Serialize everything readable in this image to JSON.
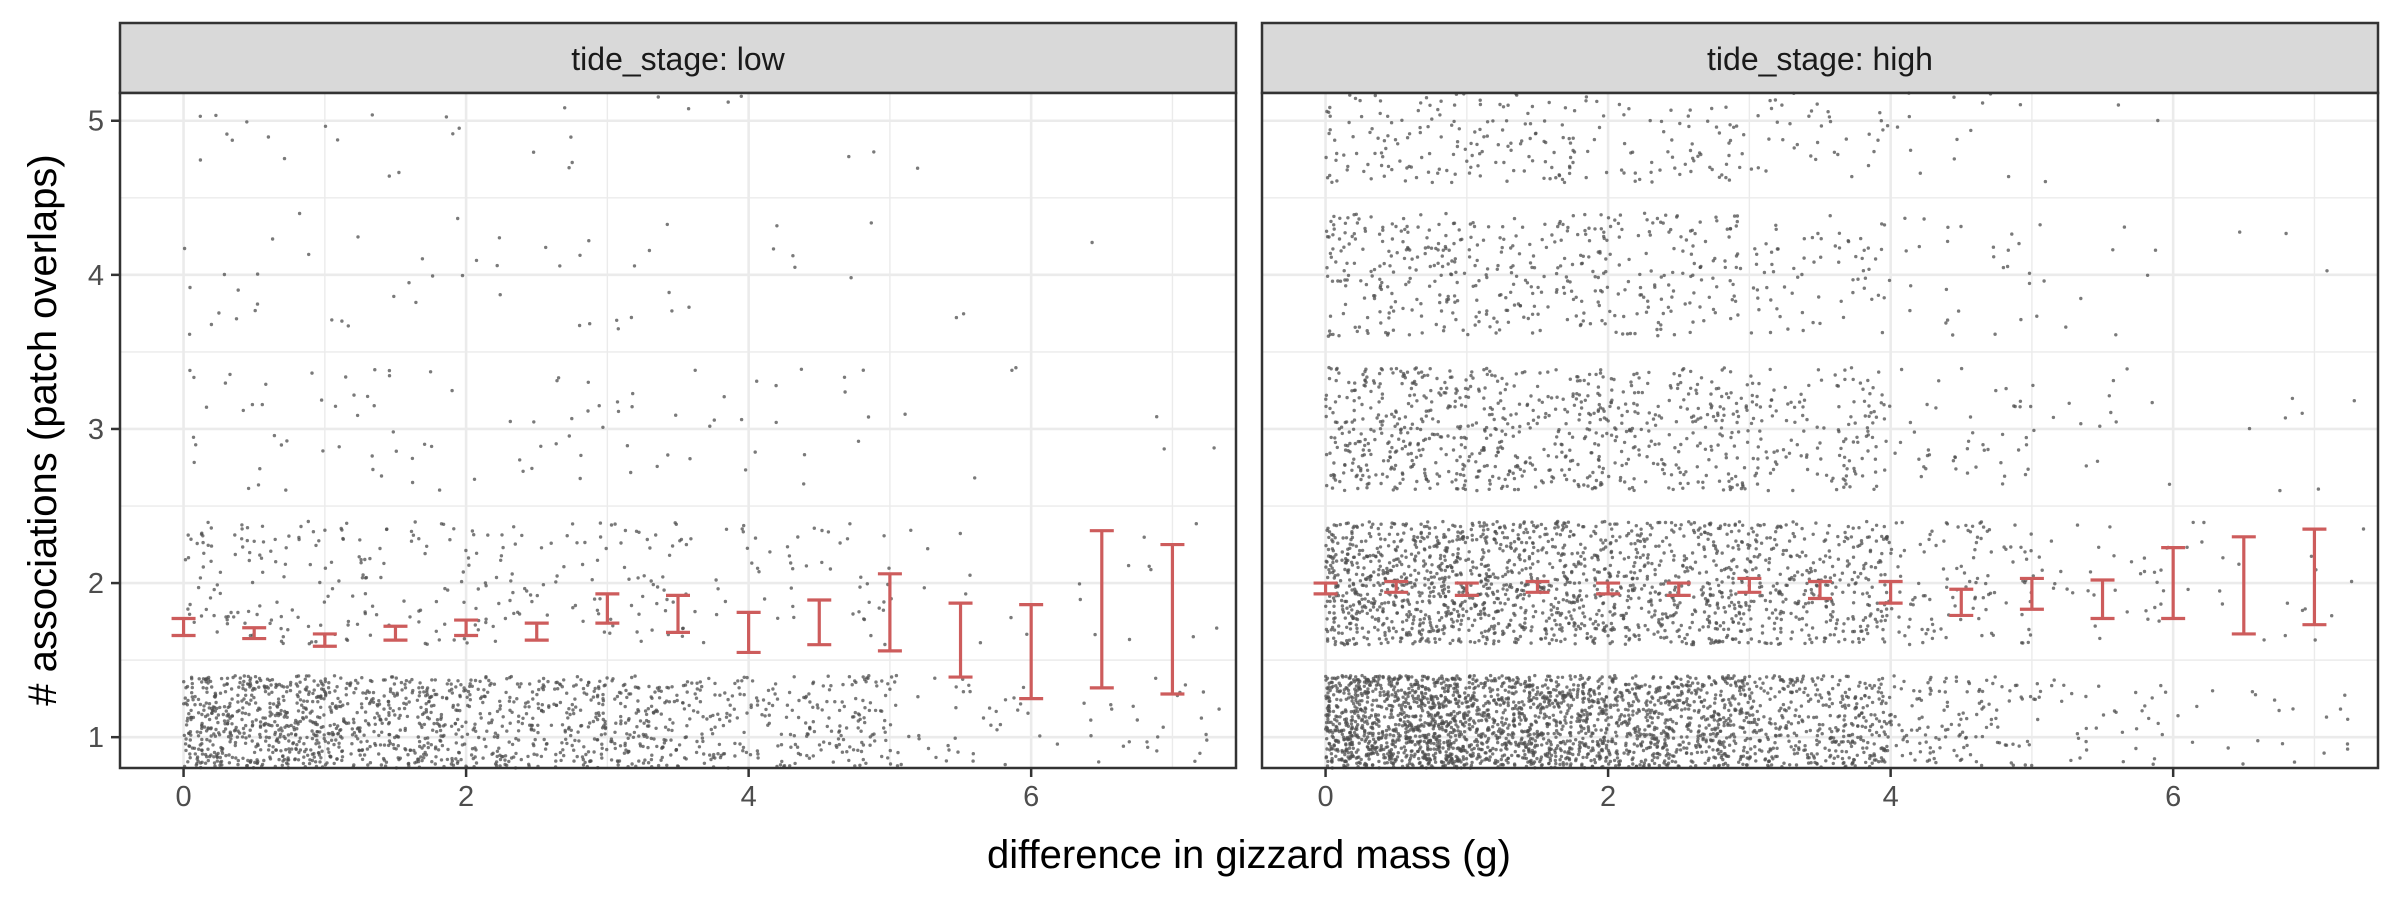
{
  "chart_data": {
    "type": "scatter",
    "facet_variable": "tide_stage",
    "xlabel": "difference in gizzard mass (g)",
    "ylabel": "# associations (patch overlaps)",
    "xlim": [
      -0.45,
      7.45
    ],
    "ylim": [
      0.8,
      5.18
    ],
    "x_ticks": [
      0,
      2,
      4,
      6
    ],
    "y_ticks": [
      1,
      2,
      3,
      4,
      5
    ],
    "grid": true,
    "colors": {
      "points": "#4d4d4d",
      "errorbars": "#cd5c5c",
      "strip_bg": "#d9d9d9",
      "grid": "#ebebeb",
      "panel_border": "#333333"
    },
    "panels": [
      {
        "strip": "tide_stage: low",
        "errorbars": [
          {
            "x": 0.0,
            "ymin": 1.66,
            "ymax": 1.77
          },
          {
            "x": 0.5,
            "ymin": 1.64,
            "ymax": 1.71
          },
          {
            "x": 1.0,
            "ymin": 1.59,
            "ymax": 1.67
          },
          {
            "x": 1.5,
            "ymin": 1.63,
            "ymax": 1.72
          },
          {
            "x": 2.0,
            "ymin": 1.66,
            "ymax": 1.76
          },
          {
            "x": 2.5,
            "ymin": 1.63,
            "ymax": 1.74
          },
          {
            "x": 3.0,
            "ymin": 1.74,
            "ymax": 1.93
          },
          {
            "x": 3.5,
            "ymin": 1.68,
            "ymax": 1.92
          },
          {
            "x": 4.0,
            "ymin": 1.55,
            "ymax": 1.81
          },
          {
            "x": 4.5,
            "ymin": 1.6,
            "ymax": 1.89
          },
          {
            "x": 5.0,
            "ymin": 1.56,
            "ymax": 2.06
          },
          {
            "x": 5.5,
            "ymin": 1.39,
            "ymax": 1.87
          },
          {
            "x": 6.0,
            "ymin": 1.25,
            "ymax": 1.86
          },
          {
            "x": 6.5,
            "ymin": 1.32,
            "ymax": 2.34
          },
          {
            "x": 7.0,
            "ymin": 1.28,
            "ymax": 2.25
          }
        ],
        "point_density": [
          [
            700,
            95,
            22,
            14,
            10
          ],
          [
            480,
            70,
            22,
            11,
            8
          ],
          [
            380,
            65,
            18,
            10,
            7
          ],
          [
            300,
            55,
            16,
            9,
            5
          ],
          [
            210,
            40,
            12,
            6,
            3
          ],
          [
            60,
            10,
            4,
            2,
            1
          ],
          [
            30,
            8,
            2,
            1,
            0
          ],
          [
            12,
            3,
            1,
            0,
            0
          ]
        ]
      },
      {
        "strip": "tide_stage: high",
        "errorbars": [
          {
            "x": 0.0,
            "ymin": 1.93,
            "ymax": 2.0
          },
          {
            "x": 0.5,
            "ymin": 1.94,
            "ymax": 2.01
          },
          {
            "x": 1.0,
            "ymin": 1.92,
            "ymax": 2.0
          },
          {
            "x": 1.5,
            "ymin": 1.94,
            "ymax": 2.01
          },
          {
            "x": 2.0,
            "ymin": 1.93,
            "ymax": 2.0
          },
          {
            "x": 2.5,
            "ymin": 1.92,
            "ymax": 2.0
          },
          {
            "x": 3.0,
            "ymin": 1.94,
            "ymax": 2.03
          },
          {
            "x": 3.5,
            "ymin": 1.9,
            "ymax": 2.01
          },
          {
            "x": 4.0,
            "ymin": 1.87,
            "ymax": 2.01
          },
          {
            "x": 4.5,
            "ymin": 1.79,
            "ymax": 1.96
          },
          {
            "x": 5.0,
            "ymin": 1.83,
            "ymax": 2.03
          },
          {
            "x": 5.5,
            "ymin": 1.77,
            "ymax": 2.02
          },
          {
            "x": 6.0,
            "ymin": 1.77,
            "ymax": 2.23
          },
          {
            "x": 6.5,
            "ymin": 1.67,
            "ymax": 2.3
          },
          {
            "x": 7.0,
            "ymin": 1.73,
            "ymax": 2.35
          }
        ],
        "point_density": [
          [
            1350,
            600,
            300,
            180,
            140
          ],
          [
            1000,
            480,
            240,
            150,
            100
          ],
          [
            750,
            400,
            200,
            120,
            80
          ],
          [
            500,
            300,
            140,
            70,
            50
          ],
          [
            170,
            110,
            45,
            25,
            20
          ],
          [
            50,
            35,
            15,
            10,
            4
          ],
          [
            20,
            15,
            5,
            2,
            2
          ],
          [
            8,
            5,
            2,
            1,
            1
          ]
        ]
      }
    ]
  }
}
